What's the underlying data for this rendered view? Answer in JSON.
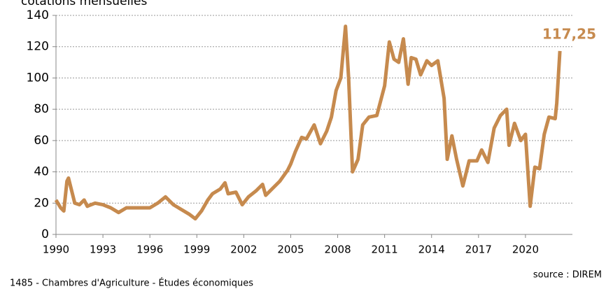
{
  "chart_data": {
    "type": "line",
    "title": "cotations mensuelles",
    "annotation": "117,25",
    "footer": "1485 - Chambres d'Agriculture  - Études économiques",
    "source": "source : DIREM",
    "x": [
      1990.0,
      1990.3,
      1990.5,
      1990.7,
      1990.8,
      1991.0,
      1991.2,
      1991.5,
      1991.8,
      1992.0,
      1992.5,
      1993.0,
      1993.5,
      1994.0,
      1994.5,
      1995.0,
      1995.5,
      1996.0,
      1996.5,
      1997.0,
      1997.5,
      1998.0,
      1998.5,
      1998.9,
      1999.3,
      1999.7,
      2000.0,
      2000.5,
      2000.8,
      2001.0,
      2001.5,
      2001.9,
      2002.3,
      2002.8,
      2003.2,
      2003.4,
      2003.8,
      2004.3,
      2004.8,
      2005.0,
      2005.3,
      2005.7,
      2006.0,
      2006.5,
      2006.9,
      2007.3,
      2007.6,
      2007.9,
      2008.2,
      2008.5,
      2008.7,
      2008.95,
      2009.3,
      2009.6,
      2010.0,
      2010.5,
      2011.0,
      2011.3,
      2011.6,
      2011.9,
      2012.2,
      2012.5,
      2012.7,
      2013.0,
      2013.3,
      2013.7,
      2014.0,
      2014.4,
      2014.8,
      2015.0,
      2015.3,
      2015.6,
      2016.0,
      2016.4,
      2016.9,
      2017.2,
      2017.6,
      2018.0,
      2018.4,
      2018.8,
      2018.95,
      2019.3,
      2019.7,
      2020.0,
      2020.3,
      2020.6,
      2020.9,
      2021.2,
      2021.5,
      2021.9,
      2022.0,
      2022.2
    ],
    "series": [
      {
        "name": "cotations mensuelles",
        "color": "#c68a4e",
        "values": [
          22,
          17,
          15,
          34,
          36,
          28,
          20,
          19,
          22,
          18,
          20,
          19,
          17,
          14,
          17,
          17,
          17,
          17,
          20,
          24,
          19,
          16,
          13,
          10,
          15,
          22,
          26,
          29,
          33,
          26,
          27,
          19,
          24,
          28,
          32,
          25,
          29,
          34,
          41,
          45,
          53,
          62,
          61,
          70,
          58,
          66,
          75,
          92,
          100,
          133,
          100,
          40,
          48,
          70,
          75,
          76,
          95,
          123,
          112,
          110,
          125,
          96,
          113,
          112,
          102,
          111,
          108,
          111,
          87,
          48,
          63,
          48,
          31,
          47,
          47,
          54,
          46,
          68,
          76,
          80,
          57,
          71,
          60,
          64,
          18,
          43,
          42,
          64,
          75,
          74,
          84,
          117.25
        ]
      }
    ],
    "xlim": [
      1990,
      2023
    ],
    "xticks": [
      1990,
      1993,
      1996,
      1999,
      2002,
      2005,
      2008,
      2011,
      2014,
      2017,
      2020
    ],
    "ylim": [
      0,
      140
    ],
    "yticks": [
      0,
      20,
      40,
      60,
      80,
      100,
      120,
      140
    ],
    "grid": true
  }
}
